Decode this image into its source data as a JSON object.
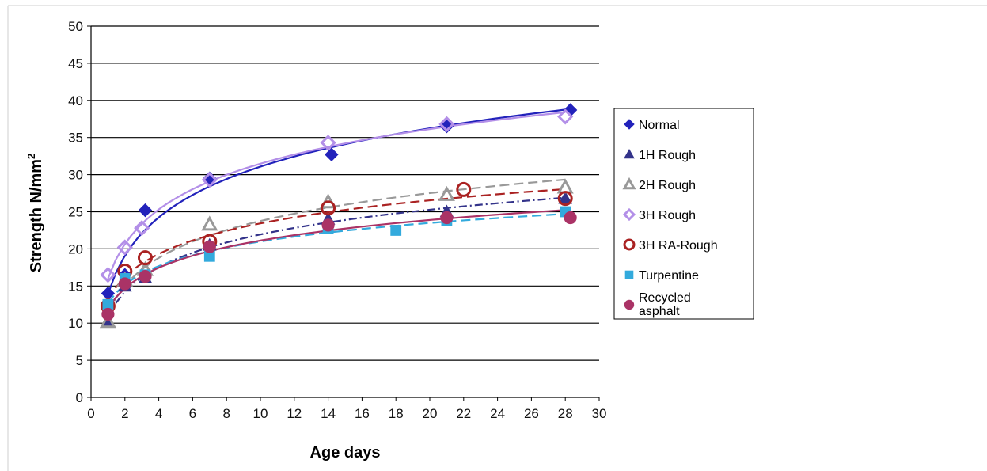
{
  "chart_data": {
    "type": "scatter",
    "xlabel": "Age days",
    "ylabel": "Strength N/mm",
    "ylabel_superscript": "2",
    "xlim": [
      0,
      30
    ],
    "ylim": [
      0,
      50
    ],
    "x_ticks": [
      "0",
      "2",
      "4",
      "6",
      "8",
      "10",
      "12",
      "14",
      "16",
      "18",
      "20",
      "22",
      "24",
      "26",
      "28",
      "30"
    ],
    "y_ticks": [
      "0",
      "5",
      "10",
      "15",
      "20",
      "25",
      "30",
      "35",
      "40",
      "45",
      "50"
    ],
    "grid": "horizontal",
    "legend_position": "right",
    "trendline": "logarithmic",
    "series": [
      {
        "name": "Normal",
        "marker": "diamond",
        "color": "#2222bb",
        "line_style": "solid",
        "x": [
          1,
          2,
          3.2,
          7,
          14.2,
          21,
          28.3
        ],
        "y": [
          14,
          16.5,
          25.2,
          29.5,
          32.7,
          36.5,
          38.7
        ]
      },
      {
        "name": "1H Rough",
        "marker": "triangle",
        "color": "#33338a",
        "line_style": "dashdot",
        "x": [
          1,
          2,
          3.2,
          7,
          14,
          21,
          28
        ],
        "y": [
          10.3,
          15,
          16.1,
          20.5,
          24,
          25,
          26.8
        ]
      },
      {
        "name": "2H Rough",
        "marker": "triangle-open",
        "color": "#999999",
        "line_style": "dash",
        "x": [
          1,
          2,
          3.2,
          7,
          14,
          21,
          28
        ],
        "y": [
          10.2,
          15.8,
          17.2,
          23.3,
          26.3,
          27.3,
          28.3
        ]
      },
      {
        "name": "3H Rough",
        "marker": "diamond-open",
        "color": "#b38fe8",
        "line_style": "solid",
        "x": [
          1,
          2,
          3,
          7,
          14,
          21,
          28
        ],
        "y": [
          16.5,
          20.2,
          22.8,
          29.3,
          34.3,
          36.8,
          37.8
        ]
      },
      {
        "name": "3H RA-Rough",
        "marker": "circle-open",
        "color": "#aa2222",
        "line_style": "dash",
        "x": [
          1,
          2,
          3.2,
          7,
          14,
          22,
          28
        ],
        "y": [
          12.3,
          17,
          18.8,
          21,
          25.5,
          28,
          26.8
        ]
      },
      {
        "name": "Turpentine",
        "marker": "square",
        "color": "#33aadd",
        "line_style": "dash",
        "x": [
          1,
          2,
          3.2,
          7,
          14,
          18,
          21,
          28
        ],
        "y": [
          12.5,
          16,
          16.5,
          19,
          22.8,
          22.5,
          23.8,
          25
        ]
      },
      {
        "name": "Recycled asphalt",
        "legend_lines": [
          "Recycled",
          "asphalt"
        ],
        "marker": "circle",
        "color": "#aa3366",
        "line_style": "solid",
        "x": [
          1,
          2,
          3.2,
          7,
          14,
          21,
          28.3
        ],
        "y": [
          11.2,
          15.3,
          16.3,
          20.3,
          23.2,
          24.2,
          24.2
        ]
      }
    ]
  }
}
